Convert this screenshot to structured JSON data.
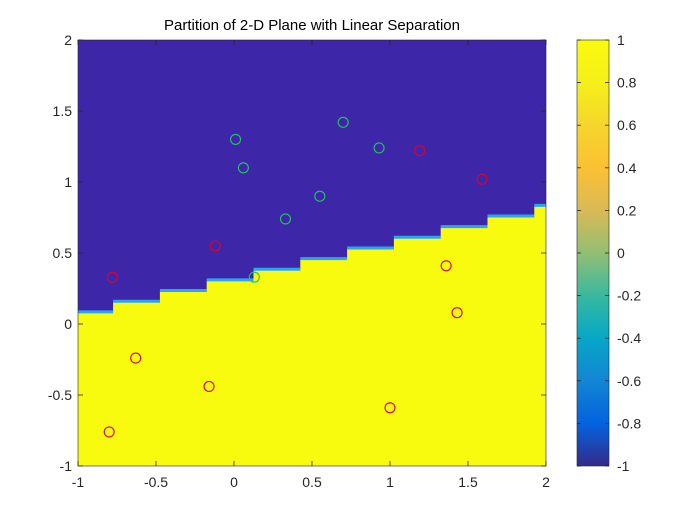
{
  "chart_data": {
    "type": "scatter",
    "title": "Partition of 2-D Plane with Linear Separation",
    "xlabel": "",
    "ylabel": "",
    "xlim": [
      -1,
      2
    ],
    "ylim": [
      -1,
      2
    ],
    "xticks": [
      -1,
      -0.5,
      0,
      0.5,
      1,
      1.5,
      2
    ],
    "xtick_labels": [
      "-1",
      "-0.5",
      "0",
      "0.5",
      "1",
      "1.5",
      "2"
    ],
    "yticks": [
      -1,
      -0.5,
      0,
      0.5,
      1,
      1.5,
      2
    ],
    "ytick_labels": [
      "-1",
      "-0.5",
      "0",
      "0.5",
      "1",
      "1.5",
      "2"
    ],
    "grid": false,
    "background": {
      "type": "heatmap",
      "colormap": "parula",
      "boundary_line": {
        "slope": 0.25,
        "intercept": 0.3
      },
      "below_value": 1,
      "above_value": -1,
      "below_color": "#f9fb0e",
      "above_color": "#3e26a8",
      "edge_color": "#2aa6f0"
    },
    "colorbar": {
      "limits": [
        -1,
        1
      ],
      "ticks": [
        -1,
        -0.8,
        -0.6,
        -0.4,
        -0.2,
        0,
        0.2,
        0.4,
        0.6,
        0.8,
        1
      ],
      "tick_labels": [
        "-1",
        "-0.8",
        "-0.6",
        "-0.4",
        "-0.2",
        "0",
        "0.2",
        "0.4",
        "0.6",
        "0.8",
        "1"
      ]
    },
    "points": [
      {
        "x": 0.01,
        "y": 1.3,
        "class": "green"
      },
      {
        "x": 0.06,
        "y": 1.1,
        "class": "green"
      },
      {
        "x": 0.7,
        "y": 1.42,
        "class": "green"
      },
      {
        "x": 0.93,
        "y": 1.24,
        "class": "green"
      },
      {
        "x": 0.55,
        "y": 0.9,
        "class": "green"
      },
      {
        "x": 0.33,
        "y": 0.74,
        "class": "green"
      },
      {
        "x": 0.13,
        "y": 0.33,
        "class": "green"
      },
      {
        "x": -0.78,
        "y": 0.33,
        "class": "red"
      },
      {
        "x": -0.12,
        "y": 0.55,
        "class": "red"
      },
      {
        "x": 1.19,
        "y": 1.22,
        "class": "red"
      },
      {
        "x": 1.59,
        "y": 1.02,
        "class": "red"
      },
      {
        "x": 1.36,
        "y": 0.41,
        "class": "red"
      },
      {
        "x": 1.43,
        "y": 0.08,
        "class": "red"
      },
      {
        "x": -0.63,
        "y": -0.24,
        "class": "red"
      },
      {
        "x": -0.16,
        "y": -0.44,
        "class": "red"
      },
      {
        "x": 1.0,
        "y": -0.59,
        "class": "red"
      },
      {
        "x": -0.8,
        "y": -0.76,
        "class": "red"
      }
    ],
    "marker_colors": {
      "green": "#22c55e",
      "red": "#e0002a"
    }
  }
}
